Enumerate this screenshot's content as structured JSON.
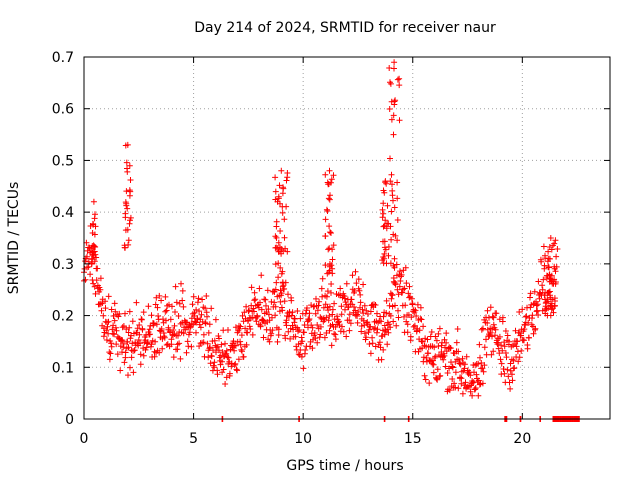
{
  "chart_data": {
    "type": "scatter",
    "title": "Day 214 of 2024, SRMTID for receiver naur",
    "xlabel": "GPS time / hours",
    "ylabel": "SRMTID / TECUs",
    "xlim": [
      0,
      24
    ],
    "ylim": [
      0,
      0.7
    ],
    "x_ticks": [
      0,
      5,
      10,
      15,
      20
    ],
    "x_tick_labels": [
      "0",
      "5",
      "10",
      "15",
      "20"
    ],
    "y_ticks": [
      0,
      0.1,
      0.2,
      0.3,
      0.4,
      0.5,
      0.6,
      0.7
    ],
    "y_tick_labels": [
      "0",
      "0.1",
      "0.2",
      "0.3",
      "0.4",
      "0.5",
      "0.6",
      "0.7"
    ],
    "grid": true,
    "marker": "+",
    "series_color": "#ff0000",
    "profile_points": [
      [
        0.0,
        0.3
      ],
      [
        0.3,
        0.33
      ],
      [
        0.7,
        0.26
      ],
      [
        1.0,
        0.17
      ],
      [
        1.5,
        0.16
      ],
      [
        2.0,
        0.15
      ],
      [
        2.5,
        0.16
      ],
      [
        3.0,
        0.17
      ],
      [
        4.0,
        0.19
      ],
      [
        4.8,
        0.18
      ],
      [
        5.2,
        0.2
      ],
      [
        5.8,
        0.15
      ],
      [
        6.5,
        0.11
      ],
      [
        7.0,
        0.13
      ],
      [
        7.5,
        0.2
      ],
      [
        8.0,
        0.22
      ],
      [
        8.5,
        0.2
      ],
      [
        9.0,
        0.23
      ],
      [
        9.5,
        0.18
      ],
      [
        10.0,
        0.15
      ],
      [
        10.5,
        0.2
      ],
      [
        11.0,
        0.21
      ],
      [
        11.5,
        0.19
      ],
      [
        12.0,
        0.22
      ],
      [
        12.5,
        0.24
      ],
      [
        13.0,
        0.18
      ],
      [
        13.5,
        0.16
      ],
      [
        14.0,
        0.22
      ],
      [
        14.5,
        0.24
      ],
      [
        15.0,
        0.2
      ],
      [
        15.5,
        0.13
      ],
      [
        16.0,
        0.12
      ],
      [
        16.5,
        0.12
      ],
      [
        17.0,
        0.11
      ],
      [
        17.5,
        0.09
      ],
      [
        18.0,
        0.08
      ],
      [
        18.5,
        0.18
      ],
      [
        19.0,
        0.14
      ],
      [
        19.5,
        0.12
      ],
      [
        20.0,
        0.17
      ],
      [
        20.5,
        0.2
      ],
      [
        21.0,
        0.27
      ],
      [
        21.5,
        0.25
      ]
    ],
    "profile_spread": 0.035,
    "spikes": [
      {
        "x_start": 1.85,
        "x_end": 2.15,
        "y_low": 0.33,
        "y_high": 0.53
      },
      {
        "x_start": 0.35,
        "x_end": 0.55,
        "y_low": 0.3,
        "y_high": 0.42
      },
      {
        "x_start": 8.7,
        "x_end": 9.3,
        "y_low": 0.25,
        "y_high": 0.48
      },
      {
        "x_start": 11.0,
        "x_end": 11.4,
        "y_low": 0.28,
        "y_high": 0.48
      },
      {
        "x_start": 13.9,
        "x_end": 14.4,
        "y_low": 0.28,
        "y_high": 0.69
      },
      {
        "x_start": 13.6,
        "x_end": 13.9,
        "y_low": 0.3,
        "y_high": 0.46
      },
      {
        "x_start": 21.0,
        "x_end": 21.6,
        "y_low": 0.2,
        "y_high": 0.35
      }
    ],
    "zero_clusters": [
      {
        "x_start": 6.3,
        "x_end": 6.35
      },
      {
        "x_start": 9.8,
        "x_end": 9.85
      },
      {
        "x_start": 13.7,
        "x_end": 13.75
      },
      {
        "x_start": 14.8,
        "x_end": 14.85
      },
      {
        "x_start": 19.2,
        "x_end": 19.3
      },
      {
        "x_start": 19.9,
        "x_end": 19.95
      },
      {
        "x_start": 20.8,
        "x_end": 20.85
      },
      {
        "x_start": 21.4,
        "x_end": 22.6
      }
    ],
    "x_data_end": 22.6
  }
}
